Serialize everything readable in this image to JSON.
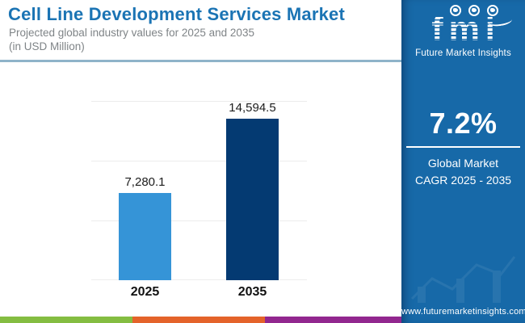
{
  "header": {
    "title": "Cell Line Development Services Market",
    "subtitle_line1": "Projected global industry values for 2025 and 2035",
    "subtitle_line2": "(in USD Million)"
  },
  "chart_data": {
    "type": "bar",
    "categories": [
      "2025",
      "2035"
    ],
    "values": [
      7280.1,
      14594.5
    ],
    "value_labels": [
      "7,280.1",
      "14,594.5"
    ],
    "title": "Cell Line Development Services Market",
    "subtitle": "Projected global industry values for 2025 and 2035 (in USD Million)",
    "xlabel": "",
    "ylabel": "",
    "ylim": [
      0,
      15000
    ],
    "gridline_values": [
      0,
      5000,
      10000,
      15000
    ],
    "grid": true,
    "legend_position": "none",
    "bar_colors": [
      "#3594d7",
      "#043a72"
    ]
  },
  "sidebar": {
    "logo": {
      "text": "fmi",
      "tagline": "Future Market Insights",
      "icons": [
        "globe-map-icon-1",
        "globe-map-icon-2",
        "globe-map-icon-3"
      ]
    },
    "cagr": {
      "value": "7.2%",
      "label_line1": "Global Market",
      "label_line2": "CAGR 2025 - 2035"
    },
    "website": "www.futuremarketinsights.com"
  },
  "colors": {
    "title_blue": "#1b74b4",
    "subtitle_gray": "#7f8487",
    "separator_blue": "#8fb3c9",
    "panel_blue": "#1769a8",
    "bar_2025": "#3594d7",
    "bar_2035": "#043a72",
    "gridline": "#ececec",
    "stripe_green": "#84bd41",
    "stripe_orange": "#e4632a",
    "stripe_purple": "#92278f"
  }
}
